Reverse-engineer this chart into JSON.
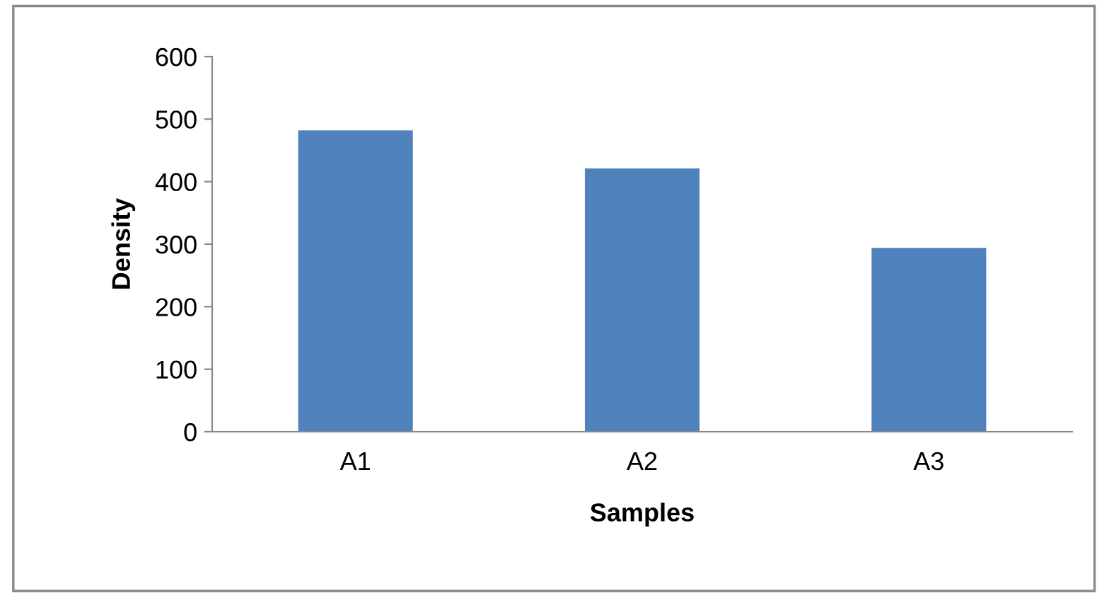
{
  "chart_data": {
    "type": "bar",
    "xlabel": "Samples",
    "ylabel": "Density",
    "categories": [
      "A1",
      "A2",
      "A3"
    ],
    "values": [
      482,
      421,
      294
    ],
    "color": "#4f81bd",
    "ylim": [
      0,
      600
    ],
    "yticks": [
      0,
      100,
      200,
      300,
      400,
      500,
      600
    ],
    "grid": false,
    "legend": false
  }
}
